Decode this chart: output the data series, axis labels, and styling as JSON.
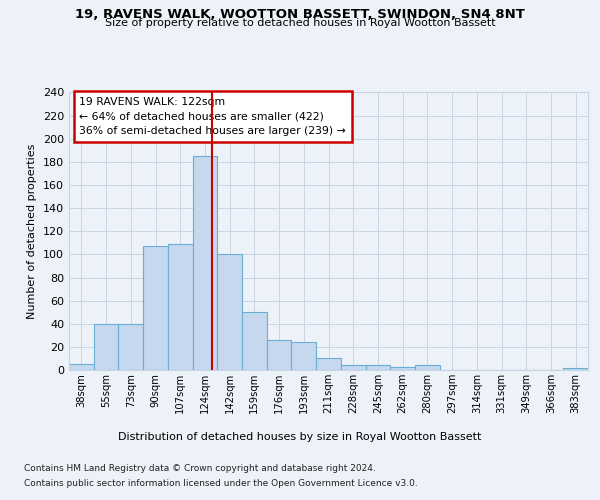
{
  "title": "19, RAVENS WALK, WOOTTON BASSETT, SWINDON, SN4 8NT",
  "subtitle": "Size of property relative to detached houses in Royal Wootton Bassett",
  "xlabel_bottom": "Distribution of detached houses by size in Royal Wootton Bassett",
  "ylabel": "Number of detached properties",
  "categories": [
    "38sqm",
    "55sqm",
    "73sqm",
    "90sqm",
    "107sqm",
    "124sqm",
    "142sqm",
    "159sqm",
    "176sqm",
    "193sqm",
    "211sqm",
    "228sqm",
    "245sqm",
    "262sqm",
    "280sqm",
    "297sqm",
    "314sqm",
    "331sqm",
    "349sqm",
    "366sqm",
    "383sqm"
  ],
  "values": [
    5,
    40,
    40,
    107,
    109,
    185,
    100,
    50,
    26,
    24,
    10,
    4,
    4,
    3,
    4,
    0,
    0,
    0,
    0,
    0,
    2
  ],
  "bar_color": "#c5d8ed",
  "bar_edge_color": "#6aaed6",
  "grid_color": "#c8d4e4",
  "background_color": "#edf2f9",
  "axes_background": "#edf2f9",
  "annotation_text": "19 RAVENS WALK: 122sqm\n← 64% of detached houses are smaller (422)\n36% of semi-detached houses are larger (239) →",
  "annotation_box_edge": "#cc0000",
  "vline_x": 5.3,
  "vline_color": "#cc0000",
  "ylim": [
    0,
    240
  ],
  "yticks": [
    0,
    20,
    40,
    60,
    80,
    100,
    120,
    140,
    160,
    180,
    200,
    220,
    240
  ],
  "footnote1": "Contains HM Land Registry data © Crown copyright and database right 2024.",
  "footnote2": "Contains public sector information licensed under the Open Government Licence v3.0."
}
